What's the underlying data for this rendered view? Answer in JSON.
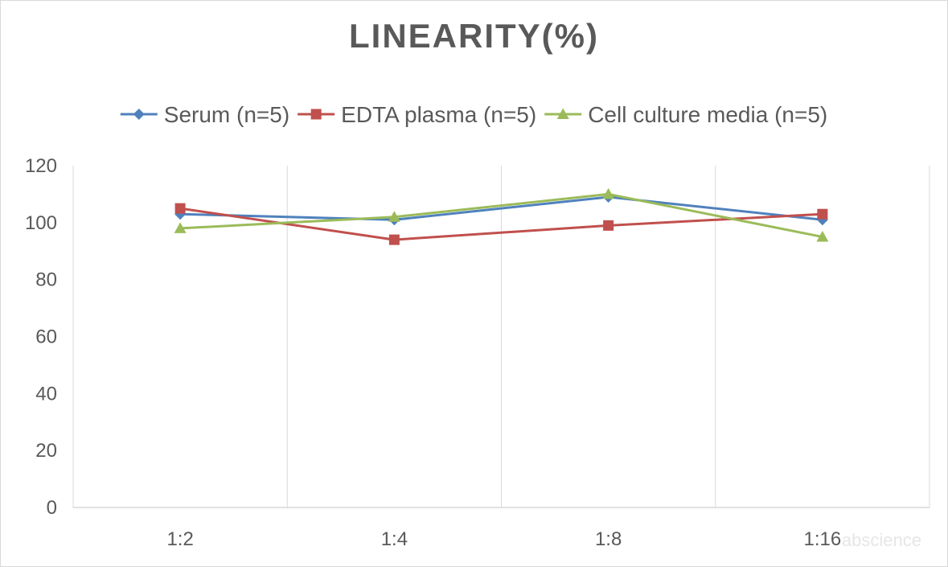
{
  "chart_data": {
    "type": "line",
    "title": "LINEARITY(%)",
    "xlabel": "",
    "ylabel": "",
    "categories": [
      "1:2",
      "1:4",
      "1:8",
      "1:16"
    ],
    "ylim": [
      0,
      120
    ],
    "yticks": [
      0,
      20,
      40,
      60,
      80,
      100,
      120
    ],
    "grid": "vertical",
    "legend": "top",
    "series": [
      {
        "name": "Serum (n=5)",
        "values": [
          103,
          101,
          109,
          101
        ],
        "color": "#4f81bd",
        "marker": "diamond"
      },
      {
        "name": "EDTA plasma (n=5)",
        "values": [
          105,
          94,
          99,
          103
        ],
        "color": "#c0504d",
        "marker": "square"
      },
      {
        "name": "Cell culture media (n=5)",
        "values": [
          98,
          102,
          110,
          95
        ],
        "color": "#9bbb59",
        "marker": "triangle"
      }
    ]
  },
  "watermark": "abscience"
}
